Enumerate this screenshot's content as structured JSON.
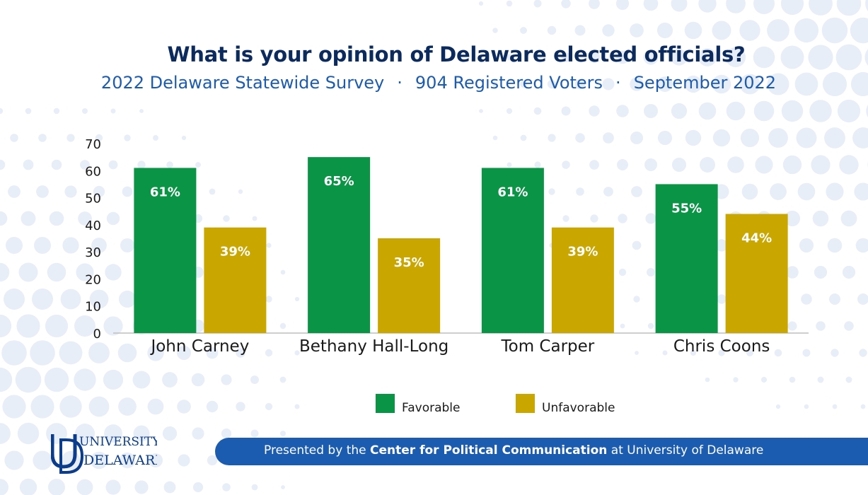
{
  "header": {
    "title": "What is your opinion of Delaware elected officials?",
    "subtitle_parts": [
      "2022 Delaware Statewide Survey",
      "904 Registered Voters",
      "September 2022"
    ],
    "separator": "·"
  },
  "chart_data": {
    "type": "bar",
    "categories": [
      "John Carney",
      "Bethany Hall-Long",
      "Tom Carper",
      "Chris Coons"
    ],
    "series": [
      {
        "name": "Favorable",
        "values": [
          61,
          65,
          61,
          55
        ],
        "labels": [
          "61%",
          "65%",
          "61%",
          "55%"
        ],
        "color": "#0a9445"
      },
      {
        "name": "Unfavorable",
        "values": [
          39,
          35,
          39,
          44
        ],
        "labels": [
          "39%",
          "35%",
          "39%",
          "44%"
        ],
        "color": "#c9a700"
      }
    ],
    "ylim": [
      0,
      70
    ],
    "yticks": [
      0,
      10,
      20,
      30,
      40,
      50,
      60,
      70
    ],
    "grid": false,
    "legend_position": "bottom"
  },
  "footer": {
    "prefix": "Presented by the ",
    "bold": "Center for Political Communication",
    "suffix": " at University of Delaware"
  },
  "logo": {
    "line1": "UNIVERSITY OF",
    "line2": "DELAWARE."
  },
  "colors": {
    "title": "#0b2a5e",
    "accent_blue": "#1b5cb0",
    "dots": "#e8eef7"
  }
}
